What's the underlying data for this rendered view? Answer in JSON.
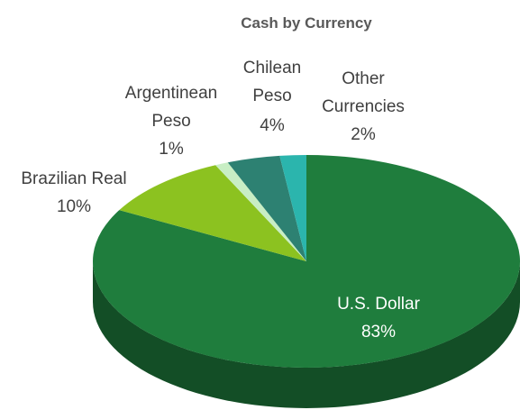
{
  "chart_data": {
    "type": "pie",
    "title": "Cash by Currency",
    "categories": [
      "U.S. Dollar",
      "Brazilian Real",
      "Argentinean Peso",
      "Chilean Peso",
      "Other Currencies"
    ],
    "values": [
      83,
      10,
      1,
      4,
      2
    ],
    "value_labels": [
      "83%",
      "10%",
      "1%",
      "4%",
      "2%"
    ],
    "colors": [
      "#1f7d3d",
      "#8cc220",
      "#c8eec4",
      "#2d8172",
      "#2bb5ad"
    ]
  }
}
